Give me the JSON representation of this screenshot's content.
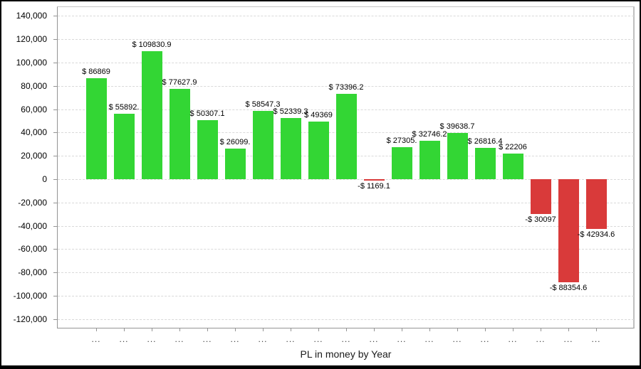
{
  "chart_data": {
    "type": "bar",
    "title": "PL in money by Year",
    "categories": [
      "...",
      "...",
      "...",
      "...",
      "...",
      "...",
      "...",
      "...",
      "...",
      "...",
      "...",
      "...",
      "...",
      "...",
      "...",
      "...",
      "...",
      "...",
      "..."
    ],
    "values": [
      86869,
      55892,
      109830.9,
      77627.9,
      50307.1,
      26099,
      58547.3,
      52339.3,
      49369,
      73396.2,
      -1169.1,
      27305,
      32746.2,
      39638.7,
      26816.4,
      22206,
      -30097,
      -88354.6,
      -42934.6
    ],
    "bar_labels": [
      "$ 86869",
      "$ 55892.",
      "$ 109830.9",
      "$ 77627.9",
      "$ 50307.1",
      "$ 26099.",
      "$ 58547.3",
      "$ 52339.3",
      "$ 49369",
      "$ 73396.2",
      "-$ 1169.1",
      "$ 27305.",
      "$ 32746.2",
      "$ 39638.7",
      "$ 26816.4",
      "$ 22206",
      "-$ 30097",
      "-$ 88354.6",
      "-$ 42934.6"
    ],
    "ylim": [
      -120000,
      140000
    ],
    "ytick_step": 20000,
    "ytick_labels": [
      "140,000",
      "120,000",
      "100,000",
      "80,000",
      "60,000",
      "40,000",
      "20,000",
      "0",
      "-20,000",
      "-40,000",
      "-60,000",
      "-80,000",
      "-100,000",
      "-120,000"
    ],
    "xlabel": "PL in money by Year",
    "ylabel": "",
    "grid": "horizontal-dashed",
    "legend": "none",
    "positive_color": "#33d634",
    "negative_color": "#d93a3a"
  }
}
